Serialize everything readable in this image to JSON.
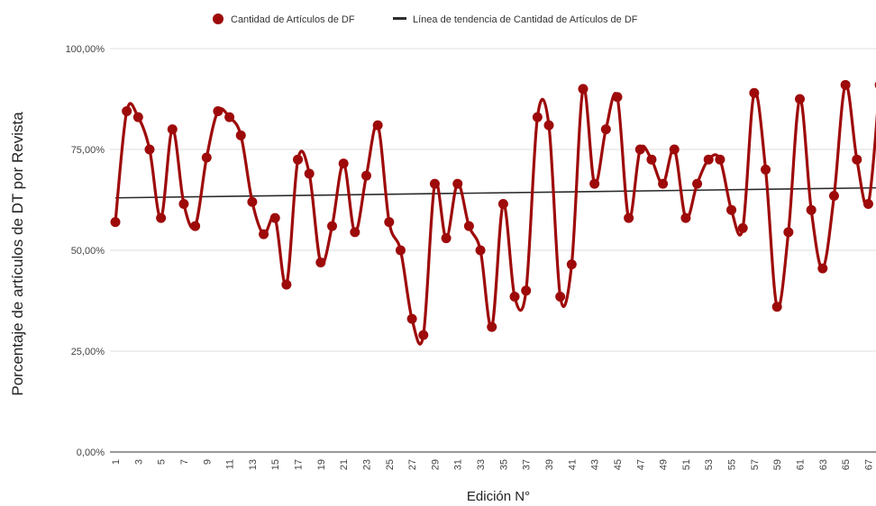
{
  "chart_data": {
    "type": "line",
    "title": "",
    "xlabel": "Edición N°",
    "ylabel": "Porcentaje de artículos de DT por Revista",
    "ylim": [
      0,
      100
    ],
    "yticks": [
      "0,00%",
      "25,00%",
      "50,00%",
      "75,00%",
      "100,00%"
    ],
    "ytick_values": [
      0,
      25,
      50,
      75,
      100
    ],
    "xlim": [
      1,
      68
    ],
    "xticks": [
      "1",
      "3",
      "5",
      "7",
      "9",
      "11",
      "13",
      "15",
      "17",
      "19",
      "21",
      "23",
      "25",
      "27",
      "29",
      "31",
      "33",
      "35",
      "37",
      "39",
      "41",
      "43",
      "45",
      "47",
      "49",
      "51",
      "53",
      "55",
      "57",
      "59",
      "61",
      "63",
      "65",
      "67"
    ],
    "grid": true,
    "legend_position": "top-center",
    "series": [
      {
        "name": "Cantidad de Artículos de DF",
        "color": "#9e0a0a",
        "marker": "circle",
        "x": [
          1,
          2,
          3,
          4,
          5,
          6,
          7,
          8,
          9,
          10,
          11,
          12,
          13,
          14,
          15,
          16,
          17,
          18,
          19,
          20,
          21,
          22,
          23,
          24,
          25,
          26,
          27,
          28,
          29,
          30,
          31,
          32,
          33,
          34,
          35,
          36,
          37,
          38,
          39,
          40,
          41,
          42,
          43,
          44,
          45,
          46,
          47,
          48,
          49,
          50,
          51,
          52,
          53,
          54,
          55,
          56,
          57,
          58,
          59,
          60,
          61,
          62,
          63,
          64,
          65,
          66,
          67,
          68
        ],
        "values": [
          57,
          84.5,
          83,
          75,
          58,
          80,
          61.5,
          56,
          73,
          84.5,
          83,
          78.5,
          62,
          54,
          58,
          41.5,
          72.5,
          69,
          47,
          56,
          71.5,
          54.5,
          68.5,
          81,
          57,
          50,
          33,
          29,
          66.5,
          53,
          66.5,
          56,
          50,
          31,
          61.5,
          38.5,
          40,
          83,
          81,
          38.5,
          46.5,
          90,
          66.5,
          80,
          88,
          58,
          75,
          72.5,
          66.5,
          75,
          58,
          66.5,
          72.5,
          72.5,
          60,
          55.5,
          89,
          70,
          36,
          54.5,
          87.5,
          60,
          45.5,
          63.5,
          91,
          72.5,
          61.5,
          91
        ]
      },
      {
        "name": "Línea de tendencia de Cantidad de Artículos de DF",
        "color": "#2b2b2b",
        "type": "trendline",
        "x": [
          1,
          68
        ],
        "values": [
          63,
          65.5
        ]
      }
    ]
  }
}
